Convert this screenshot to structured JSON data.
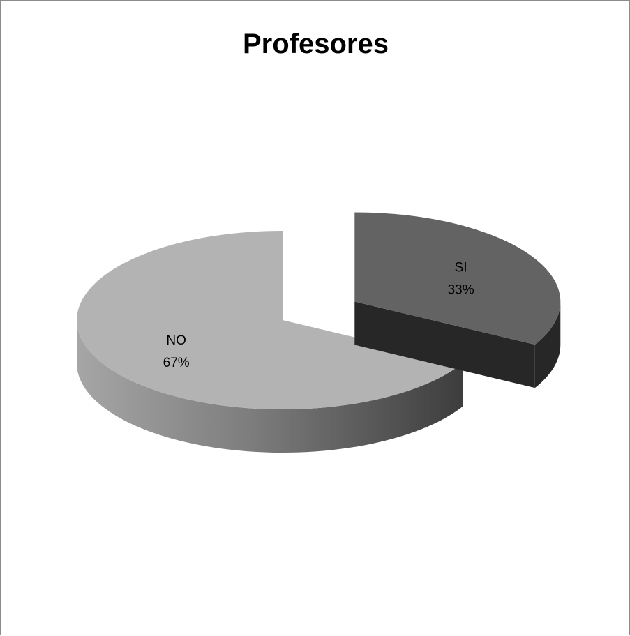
{
  "chart_data": {
    "type": "pie",
    "title": "Profesores",
    "style": "3d-exploded",
    "series": [
      {
        "name": "",
        "slices": [
          {
            "label": "SI",
            "value": 33,
            "value_label": "33%",
            "color": "#636363",
            "side_color": "#272727",
            "exploded": true
          },
          {
            "label": "NO",
            "value": 67,
            "value_label": "67%",
            "color": "#b3b3b3",
            "side_color": "#7a7a7a",
            "exploded": false
          }
        ]
      }
    ],
    "legend": "none"
  }
}
